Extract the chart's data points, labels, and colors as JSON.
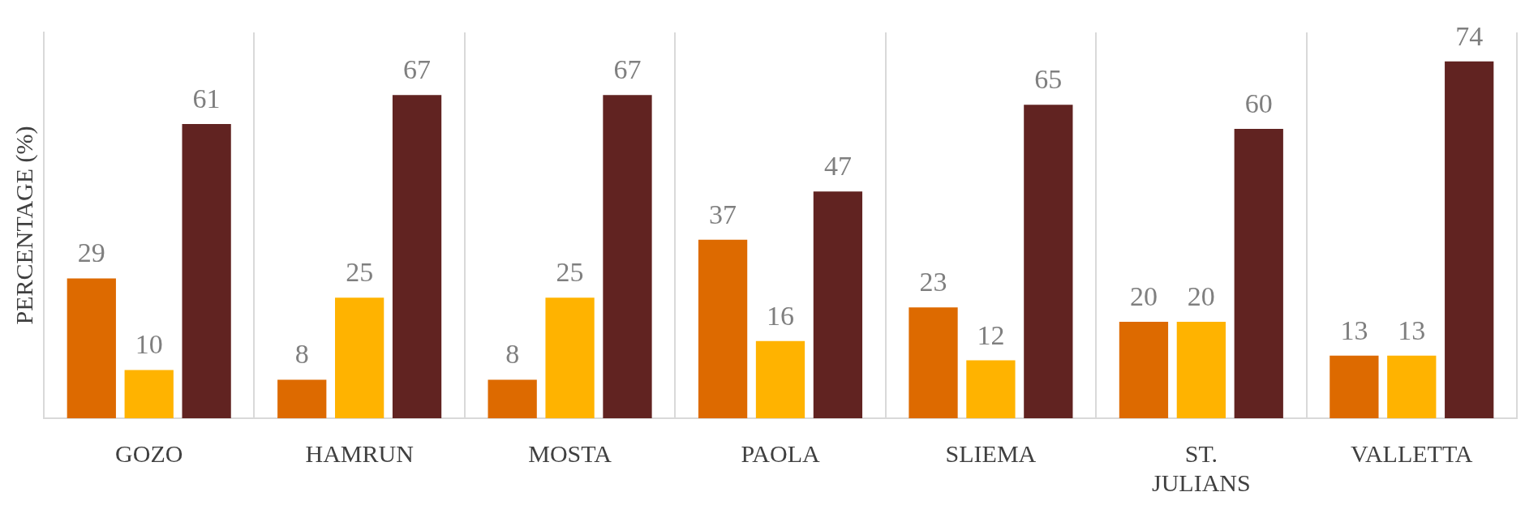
{
  "chart_data": {
    "type": "bar",
    "ylabel": "PERCENTAGE (%)",
    "categories": [
      "GOZO",
      "HAMRUN",
      "MOSTA",
      "PAOLA",
      "SLIEMA",
      "ST. JULIANS",
      "VALLETTA"
    ],
    "series": [
      {
        "color": "#dd6a00",
        "values": [
          29,
          8,
          8,
          37,
          23,
          20,
          13
        ]
      },
      {
        "color": "#ffb300",
        "values": [
          10,
          25,
          25,
          16,
          12,
          20,
          13
        ]
      },
      {
        "color": "#612321",
        "values": [
          61,
          67,
          67,
          47,
          65,
          60,
          74
        ]
      }
    ],
    "data_labels": true,
    "grid": "x",
    "legend": false
  }
}
